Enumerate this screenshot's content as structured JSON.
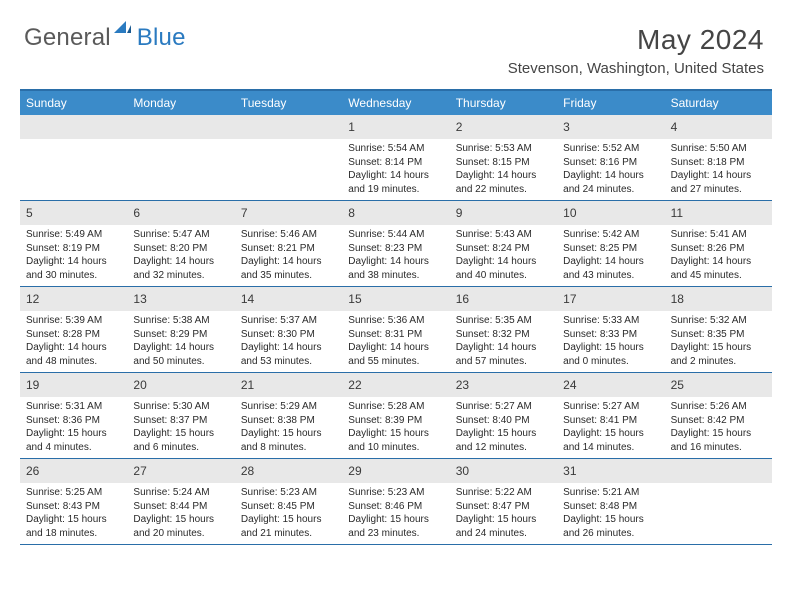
{
  "logo": {
    "general": "General",
    "blue": "Blue"
  },
  "title": "May 2024",
  "location": "Stevenson, Washington, United States",
  "colors": {
    "header_bg": "#3b8bc9",
    "border": "#2a6ea8",
    "daynum_bg": "#e8e8e8",
    "text": "#2a2a2a",
    "logo_gray": "#5a5a5a",
    "logo_blue": "#2a7ac0"
  },
  "day_labels": [
    "Sunday",
    "Monday",
    "Tuesday",
    "Wednesday",
    "Thursday",
    "Friday",
    "Saturday"
  ],
  "weeks": [
    [
      null,
      null,
      null,
      {
        "n": "1",
        "sr": "5:54 AM",
        "ss": "8:14 PM",
        "dh": "14",
        "dm": "19"
      },
      {
        "n": "2",
        "sr": "5:53 AM",
        "ss": "8:15 PM",
        "dh": "14",
        "dm": "22"
      },
      {
        "n": "3",
        "sr": "5:52 AM",
        "ss": "8:16 PM",
        "dh": "14",
        "dm": "24"
      },
      {
        "n": "4",
        "sr": "5:50 AM",
        "ss": "8:18 PM",
        "dh": "14",
        "dm": "27"
      }
    ],
    [
      {
        "n": "5",
        "sr": "5:49 AM",
        "ss": "8:19 PM",
        "dh": "14",
        "dm": "30"
      },
      {
        "n": "6",
        "sr": "5:47 AM",
        "ss": "8:20 PM",
        "dh": "14",
        "dm": "32"
      },
      {
        "n": "7",
        "sr": "5:46 AM",
        "ss": "8:21 PM",
        "dh": "14",
        "dm": "35"
      },
      {
        "n": "8",
        "sr": "5:44 AM",
        "ss": "8:23 PM",
        "dh": "14",
        "dm": "38"
      },
      {
        "n": "9",
        "sr": "5:43 AM",
        "ss": "8:24 PM",
        "dh": "14",
        "dm": "40"
      },
      {
        "n": "10",
        "sr": "5:42 AM",
        "ss": "8:25 PM",
        "dh": "14",
        "dm": "43"
      },
      {
        "n": "11",
        "sr": "5:41 AM",
        "ss": "8:26 PM",
        "dh": "14",
        "dm": "45"
      }
    ],
    [
      {
        "n": "12",
        "sr": "5:39 AM",
        "ss": "8:28 PM",
        "dh": "14",
        "dm": "48"
      },
      {
        "n": "13",
        "sr": "5:38 AM",
        "ss": "8:29 PM",
        "dh": "14",
        "dm": "50"
      },
      {
        "n": "14",
        "sr": "5:37 AM",
        "ss": "8:30 PM",
        "dh": "14",
        "dm": "53"
      },
      {
        "n": "15",
        "sr": "5:36 AM",
        "ss": "8:31 PM",
        "dh": "14",
        "dm": "55"
      },
      {
        "n": "16",
        "sr": "5:35 AM",
        "ss": "8:32 PM",
        "dh": "14",
        "dm": "57"
      },
      {
        "n": "17",
        "sr": "5:33 AM",
        "ss": "8:33 PM",
        "dh": "15",
        "dm": "0"
      },
      {
        "n": "18",
        "sr": "5:32 AM",
        "ss": "8:35 PM",
        "dh": "15",
        "dm": "2"
      }
    ],
    [
      {
        "n": "19",
        "sr": "5:31 AM",
        "ss": "8:36 PM",
        "dh": "15",
        "dm": "4"
      },
      {
        "n": "20",
        "sr": "5:30 AM",
        "ss": "8:37 PM",
        "dh": "15",
        "dm": "6"
      },
      {
        "n": "21",
        "sr": "5:29 AM",
        "ss": "8:38 PM",
        "dh": "15",
        "dm": "8"
      },
      {
        "n": "22",
        "sr": "5:28 AM",
        "ss": "8:39 PM",
        "dh": "15",
        "dm": "10"
      },
      {
        "n": "23",
        "sr": "5:27 AM",
        "ss": "8:40 PM",
        "dh": "15",
        "dm": "12"
      },
      {
        "n": "24",
        "sr": "5:27 AM",
        "ss": "8:41 PM",
        "dh": "15",
        "dm": "14"
      },
      {
        "n": "25",
        "sr": "5:26 AM",
        "ss": "8:42 PM",
        "dh": "15",
        "dm": "16"
      }
    ],
    [
      {
        "n": "26",
        "sr": "5:25 AM",
        "ss": "8:43 PM",
        "dh": "15",
        "dm": "18"
      },
      {
        "n": "27",
        "sr": "5:24 AM",
        "ss": "8:44 PM",
        "dh": "15",
        "dm": "20"
      },
      {
        "n": "28",
        "sr": "5:23 AM",
        "ss": "8:45 PM",
        "dh": "15",
        "dm": "21"
      },
      {
        "n": "29",
        "sr": "5:23 AM",
        "ss": "8:46 PM",
        "dh": "15",
        "dm": "23"
      },
      {
        "n": "30",
        "sr": "5:22 AM",
        "ss": "8:47 PM",
        "dh": "15",
        "dm": "24"
      },
      {
        "n": "31",
        "sr": "5:21 AM",
        "ss": "8:48 PM",
        "dh": "15",
        "dm": "26"
      },
      null
    ]
  ],
  "text_templates": {
    "sunrise_prefix": "Sunrise: ",
    "sunset_prefix": "Sunset: ",
    "daylight_prefix": "Daylight: ",
    "hours_word": " hours",
    "and_word": "and ",
    "minutes_word": " minutes."
  }
}
